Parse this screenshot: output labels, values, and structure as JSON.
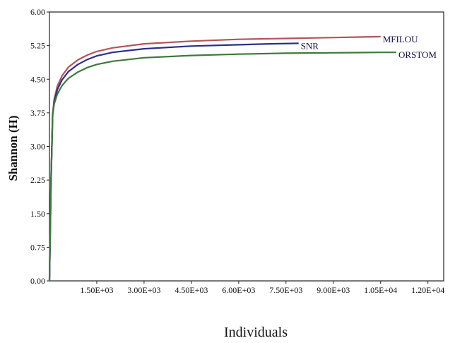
{
  "chart_data": {
    "type": "line",
    "xlabel": "Individuals",
    "ylabel": "Shannon (H)",
    "xlim": [
      0,
      12500
    ],
    "ylim": [
      0,
      6
    ],
    "x_ticks": [
      1500,
      3000,
      4500,
      6000,
      7500,
      9000,
      10500,
      12000
    ],
    "x_tick_labels": [
      "1.50E+03",
      "3.00E+03",
      "4.50E+03",
      "6.00E+03",
      "7.50E+03",
      "9.00E+03",
      "1.05E+04",
      "1.20E+04"
    ],
    "y_ticks": [
      0,
      0.75,
      1.5,
      2.25,
      3,
      3.75,
      4.5,
      5.25,
      6
    ],
    "y_tick_labels": [
      "0.00",
      "0.75",
      "1.50",
      "2.25",
      "3.00",
      "3.75",
      "4.50",
      "5.25",
      "6.00"
    ],
    "grid": false,
    "series": [
      {
        "name": "MFILOU",
        "color": "#b5535a",
        "points": [
          [
            0,
            0
          ],
          [
            50,
            2.2
          ],
          [
            100,
            3.7
          ],
          [
            150,
            4.05
          ],
          [
            250,
            4.35
          ],
          [
            400,
            4.58
          ],
          [
            600,
            4.77
          ],
          [
            900,
            4.93
          ],
          [
            1200,
            5.04
          ],
          [
            1500,
            5.12
          ],
          [
            2000,
            5.2
          ],
          [
            3000,
            5.29
          ],
          [
            4500,
            5.35
          ],
          [
            6000,
            5.39
          ],
          [
            7500,
            5.41
          ],
          [
            9000,
            5.43
          ],
          [
            10500,
            5.45
          ]
        ]
      },
      {
        "name": "SNR",
        "color": "#2a2f8a",
        "points": [
          [
            0,
            0
          ],
          [
            50,
            2.2
          ],
          [
            100,
            3.7
          ],
          [
            150,
            4.0
          ],
          [
            250,
            4.27
          ],
          [
            400,
            4.49
          ],
          [
            600,
            4.67
          ],
          [
            900,
            4.83
          ],
          [
            1200,
            4.94
          ],
          [
            1500,
            5.02
          ],
          [
            2000,
            5.1
          ],
          [
            3000,
            5.18
          ],
          [
            4500,
            5.24
          ],
          [
            6000,
            5.27
          ],
          [
            7000,
            5.29
          ],
          [
            7900,
            5.3
          ]
        ]
      },
      {
        "name": "ORSTOM",
        "color": "#3d7a3a",
        "points": [
          [
            0,
            0
          ],
          [
            50,
            2.2
          ],
          [
            100,
            3.7
          ],
          [
            150,
            3.95
          ],
          [
            250,
            4.17
          ],
          [
            400,
            4.36
          ],
          [
            600,
            4.52
          ],
          [
            900,
            4.66
          ],
          [
            1200,
            4.76
          ],
          [
            1500,
            4.83
          ],
          [
            2000,
            4.9
          ],
          [
            3000,
            4.98
          ],
          [
            4500,
            5.03
          ],
          [
            6000,
            5.06
          ],
          [
            7500,
            5.08
          ],
          [
            9000,
            5.09
          ],
          [
            10500,
            5.1
          ],
          [
            11000,
            5.1
          ]
        ]
      }
    ]
  }
}
